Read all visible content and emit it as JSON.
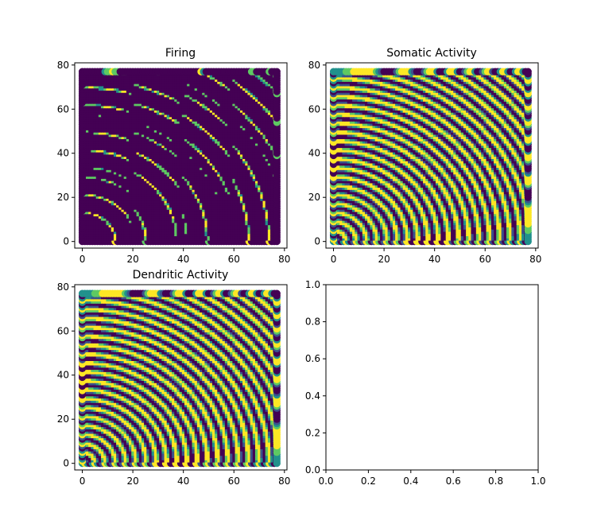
{
  "figure": {
    "background": "#ffffff",
    "colormap": [
      "#440154",
      "#3b528b",
      "#21918c",
      "#5ec962",
      "#fde725"
    ]
  },
  "chart_data": [
    {
      "type": "scatter",
      "title": "Firing",
      "xlim": [
        -3,
        81
      ],
      "ylim": [
        -3,
        81
      ],
      "x_ticks": [
        0,
        20,
        40,
        60,
        80
      ],
      "y_ticks": [
        0,
        20,
        40,
        60,
        80
      ],
      "x_tick_labels": [
        "0",
        "20",
        "40",
        "60",
        "80"
      ],
      "y_tick_labels": [
        "0",
        "20",
        "40",
        "60",
        "80"
      ],
      "grid": "square lattice x,y in 0..77 (step 1)",
      "pattern": "sparse firing; concentric rings about origin, mostly dark purple with yellow/green crests",
      "x_range": [
        0,
        77
      ],
      "y_range": [
        0,
        77
      ]
    },
    {
      "type": "scatter",
      "title": "Somatic Activity",
      "xlim": [
        -3,
        81
      ],
      "ylim": [
        -3,
        81
      ],
      "x_ticks": [
        0,
        20,
        40,
        60,
        80
      ],
      "y_ticks": [
        0,
        20,
        40,
        60,
        80
      ],
      "x_tick_labels": [
        "0",
        "20",
        "40",
        "60",
        "80"
      ],
      "y_tick_labels": [
        "0",
        "20",
        "40",
        "60",
        "80"
      ],
      "grid": "square lattice x,y in 0..77 (step 1)",
      "pattern": "concentric rings about origin, dense alternating purple/yellow-green",
      "x_range": [
        0,
        77
      ],
      "y_range": [
        0,
        77
      ]
    },
    {
      "type": "scatter",
      "title": "Dendritic Activity",
      "xlim": [
        -3,
        81
      ],
      "ylim": [
        -3,
        81
      ],
      "x_ticks": [
        0,
        20,
        40,
        60,
        80
      ],
      "y_ticks": [
        0,
        20,
        40,
        60,
        80
      ],
      "x_tick_labels": [
        "0",
        "20",
        "40",
        "60",
        "80"
      ],
      "y_tick_labels": [
        "0",
        "20",
        "40",
        "60",
        "80"
      ],
      "grid": "square lattice x,y in 0..77 (step 1)",
      "pattern": "concentric rings about origin, dense alternating purple/yellow-green",
      "x_range": [
        0,
        77
      ],
      "y_range": [
        0,
        77
      ]
    },
    {
      "type": "scatter",
      "title": "",
      "xlim": [
        0,
        1
      ],
      "ylim": [
        0,
        1
      ],
      "x_ticks": [
        0,
        0.2,
        0.4,
        0.6,
        0.8,
        1.0
      ],
      "y_ticks": [
        0,
        0.2,
        0.4,
        0.6,
        0.8,
        1.0
      ],
      "x_tick_labels": [
        "0.0",
        "0.2",
        "0.4",
        "0.6",
        "0.8",
        "1.0"
      ],
      "y_tick_labels": [
        "0.0",
        "0.2",
        "0.4",
        "0.6",
        "0.8",
        "1.0"
      ],
      "empty": true
    }
  ]
}
